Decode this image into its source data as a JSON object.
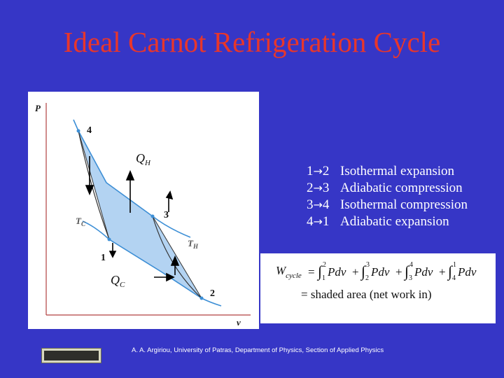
{
  "title": "Ideal Carnot Refrigeration Cycle",
  "diagram": {
    "axis_p": "P",
    "axis_v": "v",
    "point_1": "1",
    "point_2": "2",
    "point_3": "3",
    "point_4": "4",
    "q_h_main": "Q",
    "q_h_sub": "H",
    "q_c_main": "Q",
    "q_c_sub": "C",
    "t_c_main": "T",
    "t_c_sub": "C",
    "t_h_main": "T",
    "t_h_sub": "H"
  },
  "steps": [
    {
      "from": "1",
      "to": "2",
      "text": "Isothermal expansion"
    },
    {
      "from": "2",
      "to": "3",
      "text": "Adiabatic compression"
    },
    {
      "from": "3",
      "to": "4",
      "text": "Isothermal compression"
    },
    {
      "from": "4",
      "to": "1",
      "text": "Adiabatic expansion"
    }
  ],
  "formula": {
    "w_main": "W",
    "w_sub": "cycle",
    "eq": "=",
    "pdv": "Pdv",
    "plus": "+",
    "int1_upper": "2",
    "int1_lower": "1",
    "int2_upper": "3",
    "int2_lower": "2",
    "int3_upper": "4",
    "int3_lower": "3",
    "int4_upper": "1",
    "int4_lower": "4",
    "line2": "= shaded area (net work in)"
  },
  "footer": "A. A. Argiriou, University of Patras, Department of Physics, Section of Applied Physics",
  "colors": {
    "background": "#3636c6",
    "title": "#e8362b",
    "shaded_area": "#b3d3f2",
    "curves": "#3d8fd6"
  }
}
